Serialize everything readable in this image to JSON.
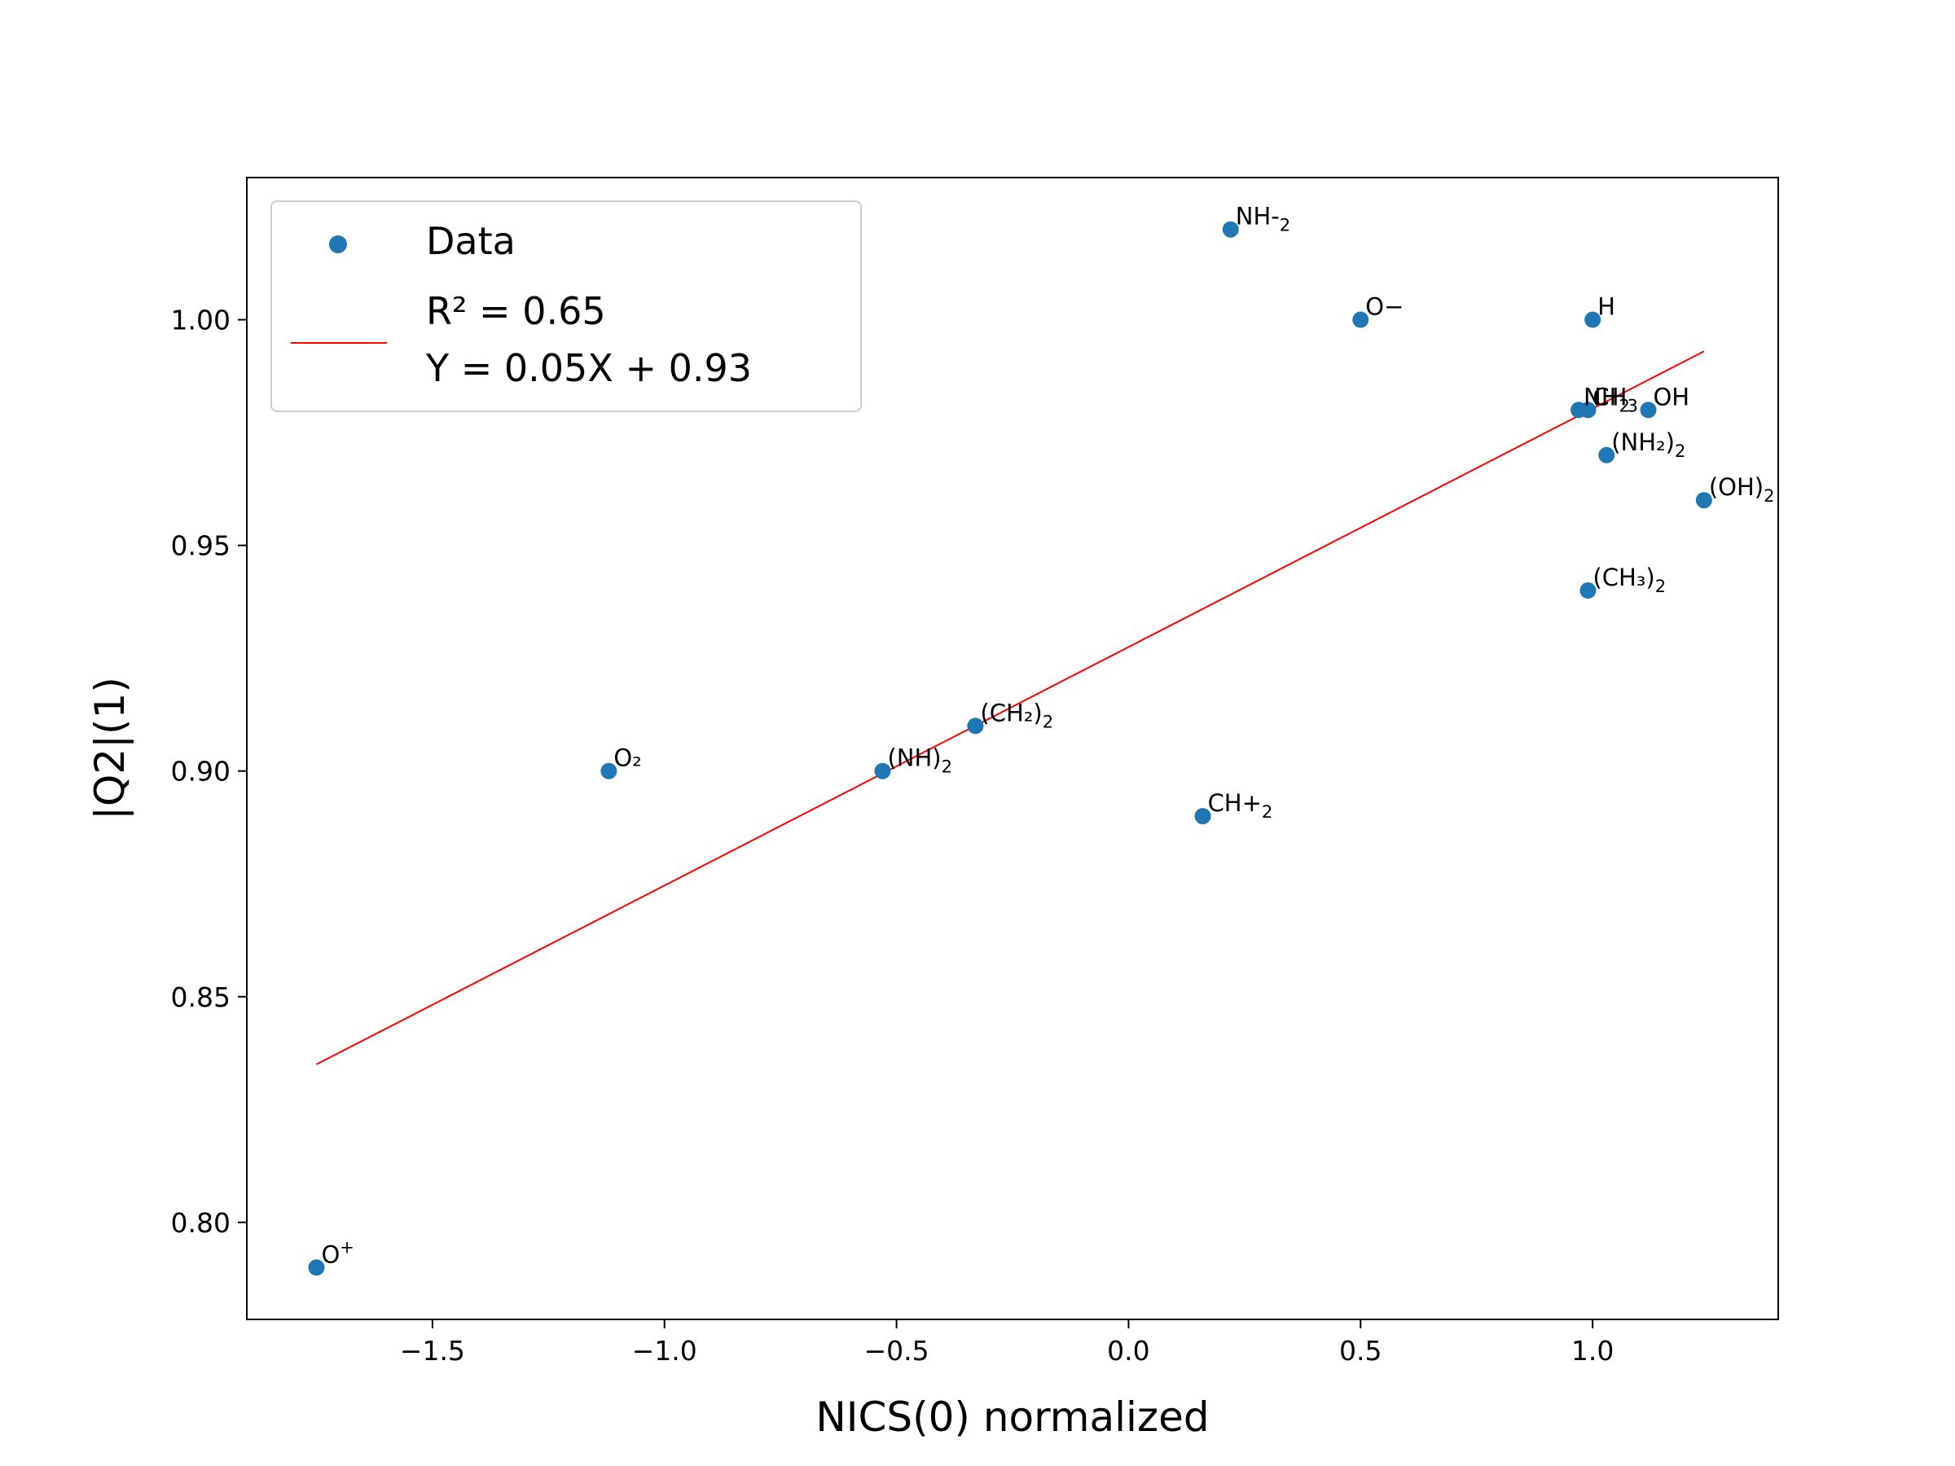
{
  "chart_data": {
    "type": "scatter",
    "title": "",
    "xlabel": "NICS(0) normalized",
    "ylabel": "|Q2|(1)",
    "xlim": [
      -1.9,
      1.4
    ],
    "ylim": [
      0.7785,
      1.0315
    ],
    "xticks": [
      -1.5,
      -1.0,
      -0.5,
      0.0,
      0.5,
      1.0
    ],
    "xtick_labels": [
      "−1.5",
      "−1.0",
      "−0.5",
      "0.0",
      "0.5",
      "1.0"
    ],
    "yticks": [
      0.8,
      0.85,
      0.9,
      0.95,
      1.0
    ],
    "ytick_labels": [
      "0.80",
      "0.85",
      "0.90",
      "0.95",
      "1.00"
    ],
    "grid": false,
    "legend_position": "upper-left",
    "series": [
      {
        "name": "Data",
        "kind": "scatter",
        "color": "#1f77b4",
        "points": [
          {
            "x": -1.75,
            "y": 0.79,
            "base": "O",
            "sub": "",
            "sup": "+"
          },
          {
            "x": -1.12,
            "y": 0.9,
            "base": "O₂",
            "sub": "",
            "sup": ""
          },
          {
            "x": -0.53,
            "y": 0.9,
            "base": "(NH)",
            "sub": "2",
            "sup": ""
          },
          {
            "x": -0.33,
            "y": 0.91,
            "base": "(CH₂)",
            "sub": "2",
            "sup": ""
          },
          {
            "x": 0.16,
            "y": 0.89,
            "base": "CH+",
            "sub": "2",
            "sup": ""
          },
          {
            "x": 0.22,
            "y": 1.02,
            "base": "NH-",
            "sub": "2",
            "sup": ""
          },
          {
            "x": 0.5,
            "y": 1.0,
            "base": "O−",
            "sub": "",
            "sup": ""
          },
          {
            "x": 1.0,
            "y": 1.0,
            "base": "H",
            "sub": "",
            "sup": ""
          },
          {
            "x": 0.97,
            "y": 0.98,
            "base": "NH",
            "sub": "2",
            "sup": ""
          },
          {
            "x": 0.99,
            "y": 0.98,
            "base": "CH",
            "sub": "3",
            "sup": ""
          },
          {
            "x": 1.12,
            "y": 0.98,
            "base": "OH",
            "sub": "",
            "sup": ""
          },
          {
            "x": 1.03,
            "y": 0.97,
            "base": "(NH₂)",
            "sub": "2",
            "sup": ""
          },
          {
            "x": 1.24,
            "y": 0.96,
            "base": "(OH)",
            "sub": "2",
            "sup": ""
          },
          {
            "x": 0.99,
            "y": 0.94,
            "base": "(CH₃)",
            "sub": "2",
            "sup": ""
          }
        ]
      },
      {
        "name": "R² = 0.65\nY = 0.05X + 0.93",
        "kind": "line",
        "color": "#ff0000",
        "x": [
          -1.75,
          1.24
        ],
        "y": [
          0.835,
          0.993
        ]
      }
    ],
    "legend_entries": [
      "Data",
      "R² = 0.65",
      "Y = 0.05X + 0.93"
    ]
  }
}
